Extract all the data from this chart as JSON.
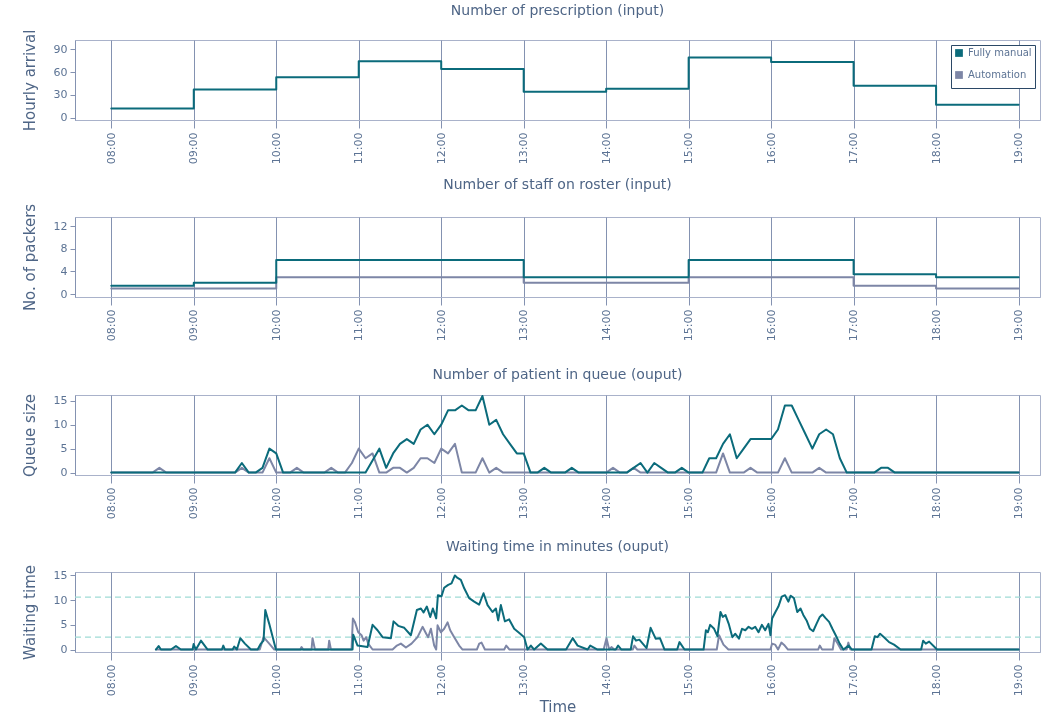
{
  "chart_data": [
    {
      "type": "step",
      "title": "Number of prescription (input)",
      "ylabel": "Hourly arrival",
      "x": [
        8,
        9,
        10,
        11,
        12,
        13,
        14,
        15,
        16,
        17,
        18,
        19
      ],
      "series": [
        {
          "name": "Fully manual",
          "color": "#0b6b7b",
          "values": [
            12,
            37,
            53,
            74,
            64,
            34,
            38,
            79,
            73,
            42,
            17,
            17
          ]
        },
        {
          "name": "Automation",
          "color": "#7d86a6",
          "values": [
            null,
            null,
            null,
            null,
            null,
            null,
            null,
            null,
            null,
            null,
            null,
            null
          ]
        }
      ],
      "xlim": [
        7.56,
        19.26
      ],
      "ylim": [
        -3,
        102
      ],
      "xticks": [
        {
          "value": 8,
          "label": "08:00"
        },
        {
          "value": 9,
          "label": "09:00"
        },
        {
          "value": 10,
          "label": "10:00"
        },
        {
          "value": 11,
          "label": "11:00"
        },
        {
          "value": 12,
          "label": "12:00"
        },
        {
          "value": 13,
          "label": "13:00"
        },
        {
          "value": 14,
          "label": "14:00"
        },
        {
          "value": 15,
          "label": "15:00"
        },
        {
          "value": 16,
          "label": "16:00"
        },
        {
          "value": 17,
          "label": "17:00"
        },
        {
          "value": 18,
          "label": "18:00"
        },
        {
          "value": 19,
          "label": "19:00"
        }
      ],
      "yticks": [
        0,
        30,
        60,
        90
      ],
      "grid": "x",
      "legend": "top right"
    },
    {
      "type": "step",
      "title": "Number of staff on roster (input)",
      "ylabel": "No. of packers",
      "x": [
        8,
        9,
        10,
        11,
        12,
        13,
        14,
        15,
        16,
        17,
        18,
        19
      ],
      "series": [
        {
          "color": "#0b6b7b",
          "values": [
            1.5,
            2,
            6,
            6,
            6,
            3,
            3,
            6,
            6,
            3.5,
            3,
            3
          ]
        },
        {
          "color": "#7d86a6",
          "values": [
            1,
            1,
            3,
            3,
            3,
            2,
            2,
            3,
            3,
            1.5,
            1,
            1
          ]
        }
      ],
      "xlim": [
        7.56,
        19.26
      ],
      "ylim": [
        -0.5,
        13.6
      ],
      "xticks": [
        {
          "value": 8,
          "label": "08:00"
        },
        {
          "value": 9,
          "label": "09:00"
        },
        {
          "value": 10,
          "label": "10:00"
        },
        {
          "value": 11,
          "label": "11:00"
        },
        {
          "value": 12,
          "label": "12:00"
        },
        {
          "value": 13,
          "label": "13:00"
        },
        {
          "value": 14,
          "label": "14:00"
        },
        {
          "value": 15,
          "label": "15:00"
        },
        {
          "value": 16,
          "label": "16:00"
        },
        {
          "value": 17,
          "label": "17:00"
        },
        {
          "value": 18,
          "label": "18:00"
        },
        {
          "value": 19,
          "label": "19:00"
        }
      ],
      "yticks": [
        0,
        4,
        8,
        12
      ],
      "grid": "x"
    },
    {
      "type": "line",
      "title": "Number of patient in queue (ouput)",
      "ylabel": "Queue size",
      "series": [
        {
          "color": "#0b6b7b",
          "x": [
            8,
            9.5,
            9.583,
            9.667,
            9.75,
            9.833,
            9.917,
            10,
            10.083,
            11.083,
            11.25,
            11.333,
            11.417,
            11.5,
            11.583,
            11.667,
            11.75,
            11.833,
            11.917,
            12,
            12.083,
            12.167,
            12.25,
            12.333,
            12.417,
            12.5,
            12.583,
            12.667,
            12.75,
            12.833,
            12.917,
            13,
            13.083,
            13.167,
            13.25,
            13.333,
            13.5,
            13.583,
            13.667,
            14.25,
            14.333,
            14.417,
            14.5,
            14.583,
            14.667,
            14.75,
            14.833,
            14.917,
            15,
            15.167,
            15.25,
            15.333,
            15.417,
            15.5,
            15.583,
            15.667,
            15.75,
            16,
            16.083,
            16.167,
            16.25,
            16.333,
            16.417,
            16.5,
            16.583,
            16.667,
            16.75,
            16.833,
            16.917,
            17.25,
            17.333,
            17.417,
            17.5,
            19
          ],
          "values": [
            0,
            0,
            2,
            0,
            0,
            1,
            5,
            4,
            0,
            0,
            5,
            1,
            4,
            6,
            7,
            6,
            9,
            10,
            8,
            10,
            13,
            13,
            14,
            13,
            13,
            16,
            10,
            11,
            8,
            6,
            4,
            4,
            0,
            0,
            1,
            0,
            0,
            1,
            0,
            0,
            1,
            2,
            0,
            2,
            1,
            0,
            0,
            1,
            0,
            0,
            3,
            3,
            6,
            8,
            3,
            5,
            7,
            7,
            9,
            14,
            14,
            11,
            8,
            5,
            8,
            9,
            8,
            3,
            0,
            0,
            1,
            1,
            0,
            0
          ]
        },
        {
          "color": "#7d86a6",
          "x": [
            8,
            8.5,
            8.583,
            8.667,
            9.5,
            9.583,
            9.667,
            9.833,
            9.917,
            10,
            10.167,
            10.25,
            10.333,
            10.583,
            10.667,
            10.75,
            10.833,
            10.917,
            11,
            11.083,
            11.167,
            11.25,
            11.333,
            11.417,
            11.5,
            11.583,
            11.667,
            11.75,
            11.833,
            11.917,
            12,
            12.083,
            12.167,
            12.25,
            12.417,
            12.5,
            12.583,
            12.667,
            12.75,
            14,
            14.083,
            14.167,
            14.25,
            14.333,
            14.417,
            15.333,
            15.417,
            15.5,
            15.667,
            15.75,
            15.833,
            16.083,
            16.167,
            16.25,
            16.5,
            16.583,
            16.667,
            19
          ],
          "values": [
            0,
            0,
            1,
            0,
            0,
            1,
            0,
            0,
            3,
            0,
            0,
            1,
            0,
            0,
            1,
            0,
            0,
            2,
            5,
            3,
            4,
            0,
            0,
            1,
            1,
            0,
            1,
            3,
            3,
            2,
            5,
            4,
            6,
            0,
            0,
            3,
            0,
            1,
            0,
            0,
            1,
            0,
            0,
            1,
            0,
            0,
            4,
            0,
            0,
            1,
            0,
            0,
            3,
            0,
            0,
            1,
            0,
            0
          ]
        }
      ],
      "xlim": [
        7.56,
        19.26
      ],
      "ylim": [
        -0.5,
        16.2
      ],
      "xticks": [
        {
          "value": 8,
          "label": "08:00"
        },
        {
          "value": 9,
          "label": "09:00"
        },
        {
          "value": 10,
          "label": "10:00"
        },
        {
          "value": 11,
          "label": "11:00"
        },
        {
          "value": 12,
          "label": "12:00"
        },
        {
          "value": 13,
          "label": "13:00"
        },
        {
          "value": 14,
          "label": "14:00"
        },
        {
          "value": 15,
          "label": "15:00"
        },
        {
          "value": 16,
          "label": "16:00"
        },
        {
          "value": 17,
          "label": "17:00"
        },
        {
          "value": 18,
          "label": "18:00"
        },
        {
          "value": 19,
          "label": "19:00"
        }
      ],
      "yticks": [
        0,
        5,
        10,
        15
      ],
      "grid": "x"
    },
    {
      "type": "line",
      "title": "Waiting time in minutes (ouput)",
      "ylabel": "Waiting time",
      "xlabel": "Time",
      "series": [
        {
          "color": "#0b6b7b",
          "x": [
            8.541,
            8.574,
            8.602,
            8.723,
            8.784,
            8.844,
            8.986,
            8.998,
            9.026,
            9.087,
            9.168,
            9.341,
            9.358,
            9.378,
            9.471,
            9.491,
            9.523,
            9.564,
            9.62,
            9.693,
            9.774,
            9.814,
            9.846,
            9.867,
            9.915,
            9.996,
            10.925,
            10.933,
            10.986,
            11.107,
            11.168,
            11.228,
            11.289,
            11.39,
            11.422,
            11.479,
            11.552,
            11.632,
            11.705,
            11.754,
            11.786,
            11.826,
            11.867,
            11.899,
            11.939,
            11.96,
            12.004,
            12.036,
            12.085,
            12.125,
            12.166,
            12.198,
            12.238,
            12.279,
            12.339,
            12.4,
            12.46,
            12.513,
            12.562,
            12.622,
            12.663,
            12.691,
            12.723,
            12.772,
            12.824,
            12.885,
            12.958,
            13.006,
            13.046,
            13.087,
            13.127,
            13.208,
            13.289,
            13.514,
            13.594,
            13.654,
            13.775,
            13.807,
            13.895,
            14.117,
            14.145,
            14.185,
            14.298,
            14.326,
            14.362,
            14.402,
            14.49,
            14.539,
            14.6,
            14.652,
            14.708,
            14.861,
            14.889,
            14.95,
            15.181,
            15.209,
            15.233,
            15.261,
            15.309,
            15.349,
            15.386,
            15.414,
            15.446,
            15.486,
            15.53,
            15.566,
            15.61,
            15.647,
            15.687,
            15.727,
            15.767,
            15.807,
            15.847,
            15.888,
            15.928,
            15.968,
            15.992,
            16.012,
            16.052,
            16.088,
            16.129,
            16.169,
            16.209,
            16.237,
            16.277,
            16.317,
            16.357,
            16.39,
            16.43,
            16.47,
            16.51,
            16.55,
            16.59,
            16.622,
            16.663,
            16.703,
            16.743,
            16.783,
            16.831,
            16.876,
            16.94,
            16.98,
            17.217,
            17.257,
            17.289,
            17.321,
            17.369,
            17.43,
            17.49,
            17.57,
            17.819,
            17.843,
            17.875,
            17.916,
            18.012,
            19
          ],
          "values": [
            0,
            0.7,
            0,
            0,
            0.7,
            0,
            0,
            1.1,
            0,
            1.8,
            0,
            0,
            0.8,
            0,
            0,
            0.6,
            0,
            2.3,
            1.2,
            0,
            0,
            1.2,
            1.8,
            8,
            5.2,
            0,
            0,
            3,
            0.8,
            0.5,
            5,
            3.9,
            2.5,
            2.3,
            5.7,
            4.8,
            4.4,
            2.9,
            8,
            8.3,
            7.5,
            8.7,
            6.6,
            8.3,
            6.3,
            11,
            10.8,
            12.5,
            13.1,
            13.4,
            15,
            14.5,
            14.1,
            12.4,
            10.4,
            9.7,
            9.1,
            11.4,
            9,
            7.6,
            8.3,
            5.9,
            9,
            5.7,
            6.1,
            4.2,
            3.2,
            2.5,
            0,
            0.8,
            0,
            1.2,
            0,
            0,
            2.3,
            0.8,
            0,
            0.8,
            0,
            0,
            0.8,
            0,
            0,
            2.7,
            1.8,
            2,
            0.3,
            4.4,
            2.2,
            2.3,
            0,
            0,
            1.5,
            0,
            0,
            3.9,
            3.5,
            5,
            4.2,
            2.7,
            7.6,
            6.6,
            7,
            5.2,
            2.5,
            3.2,
            2.2,
            4.2,
            3.9,
            4.6,
            4.2,
            4.6,
            3.5,
            5,
            3.9,
            5.2,
            2.9,
            6.3,
            7.6,
            8.7,
            10.7,
            11,
            9.7,
            10.9,
            10.4,
            7.6,
            8.3,
            7,
            5.9,
            4.2,
            3.7,
            5.2,
            6.6,
            7.1,
            6.3,
            5.6,
            4.2,
            2.9,
            1.2,
            0,
            0.8,
            0,
            0,
            2.7,
            2.5,
            3.2,
            2.5,
            1.5,
            1,
            0,
            0,
            1.8,
            1.2,
            1.6,
            0,
            0
          ]
        },
        {
          "color": "#7d86a6",
          "x": [
            8.541,
            9.8,
            9.846,
            9.915,
            9.976,
            10.291,
            10.307,
            10.327,
            10.428,
            10.44,
            10.469,
            10.63,
            10.642,
            10.663,
            10.913,
            10.929,
            10.953,
            10.994,
            11.034,
            11.059,
            11.091,
            11.115,
            11.168,
            11.41,
            11.463,
            11.511,
            11.572,
            11.64,
            11.713,
            11.774,
            11.818,
            11.842,
            11.875,
            11.915,
            11.939,
            11.956,
            11.996,
            12.036,
            12.077,
            12.109,
            12.158,
            12.218,
            12.259,
            12.432,
            12.461,
            12.489,
            12.53,
            12.764,
            12.788,
            12.828,
            13.97,
            14.004,
            14.036,
            14.064,
            14.097,
            14.322,
            14.342,
            14.378,
            15.341,
            15.369,
            15.422,
            15.482,
            15.992,
            16.012,
            16.048,
            16.084,
            16.124,
            16.165,
            16.205,
            16.57,
            16.59,
            16.618,
            16.747,
            16.767,
            16.807,
            16.847,
            16.916,
            16.936,
            16.96,
            19
          ],
          "values": [
            0,
            0,
            2.5,
            1.2,
            0,
            0,
            0.5,
            0,
            0,
            2.3,
            0,
            0,
            1.8,
            0,
            0,
            6.3,
            5.6,
            3.5,
            2.9,
            1.8,
            2.5,
            1.2,
            0,
            0,
            0.8,
            1.2,
            0.4,
            1.2,
            2.5,
            4.6,
            3.2,
            2.5,
            4.2,
            0.8,
            0,
            4.9,
            3.5,
            4.2,
            5.5,
            3.9,
            2.5,
            0.8,
            0,
            0,
            1.2,
            1.4,
            0,
            0,
            0.8,
            0,
            0,
            2.3,
            0,
            0.5,
            0,
            0,
            0.8,
            0,
            0,
            2.9,
            1,
            0,
            0,
            1.2,
            1,
            0,
            1.4,
            0.8,
            0,
            0,
            0.8,
            0,
            0,
            2.3,
            1.2,
            0,
            0,
            1.4,
            0,
            0
          ]
        }
      ],
      "ref_lines": [
        {
          "axis": "y",
          "value": 10.6,
          "color": "#9fdcd6",
          "line_style": "dashed"
        },
        {
          "axis": "y",
          "value": 2.5,
          "color": "#9fdcd6",
          "line_style": "dashed"
        }
      ],
      "xlim": [
        7.56,
        19.26
      ],
      "ylim": [
        -0.5,
        15.7
      ],
      "xticks": [
        {
          "value": 8,
          "label": "08:00"
        },
        {
          "value": 9,
          "label": "09:00"
        },
        {
          "value": 10,
          "label": "10:00"
        },
        {
          "value": 11,
          "label": "11:00"
        },
        {
          "value": 12,
          "label": "12:00"
        },
        {
          "value": 13,
          "label": "13:00"
        },
        {
          "value": 14,
          "label": "14:00"
        },
        {
          "value": 15,
          "label": "15:00"
        },
        {
          "value": 16,
          "label": "16:00"
        },
        {
          "value": 17,
          "label": "17:00"
        },
        {
          "value": 18,
          "label": "18:00"
        },
        {
          "value": 19,
          "label": "19:00"
        }
      ],
      "yticks": [
        0,
        5,
        10,
        15
      ],
      "grid": "x"
    }
  ]
}
